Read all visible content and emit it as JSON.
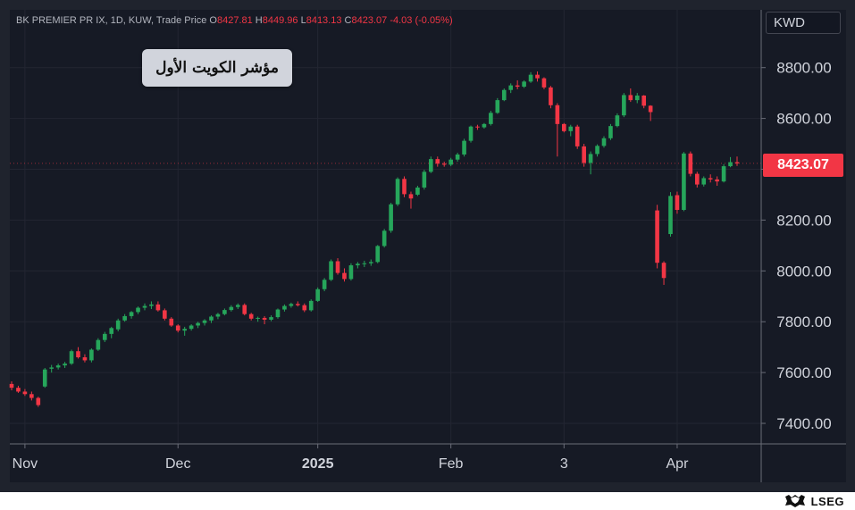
{
  "legend": {
    "symbol": "BK PREMIER PR IX, 1D, KUW, Trade Price",
    "open_label": "O",
    "open": "8427.81",
    "high_label": "H",
    "high": "8449.96",
    "low_label": "L",
    "low": "8413.13",
    "close_label": "C",
    "close": "8423.07",
    "change": "-4.03 (-0.05%)"
  },
  "title_box": "مؤشر الكويت الأول",
  "currency": "KWD",
  "last_price": "8423.07",
  "brand": "LSEG",
  "colors": {
    "up": "#26a65b",
    "down": "#f23645",
    "background": "#161a25",
    "grid": "#232632"
  },
  "chart_data": {
    "type": "candlestick",
    "ylim": [
      7300,
      8920
    ],
    "y_ticks": [
      "7400.00",
      "7600.00",
      "7800.00",
      "8000.00",
      "8200.00",
      "8400.00",
      "8600.00",
      "8800.00"
    ],
    "x_ticks": [
      "Nov",
      "Dec",
      "2025",
      "Feb",
      "3",
      "Apr"
    ],
    "grid": true,
    "candles": [
      [
        7555,
        7565,
        7530,
        7540
      ],
      [
        7540,
        7548,
        7520,
        7525
      ],
      [
        7525,
        7535,
        7508,
        7515
      ],
      [
        7515,
        7525,
        7490,
        7500
      ],
      [
        7500,
        7505,
        7465,
        7472
      ],
      [
        7545,
        7618,
        7540,
        7612
      ],
      [
        7615,
        7630,
        7600,
        7620
      ],
      [
        7620,
        7635,
        7612,
        7628
      ],
      [
        7628,
        7642,
        7618,
        7635
      ],
      [
        7635,
        7690,
        7630,
        7684
      ],
      [
        7684,
        7700,
        7655,
        7660
      ],
      [
        7660,
        7672,
        7640,
        7648
      ],
      [
        7648,
        7695,
        7640,
        7690
      ],
      [
        7690,
        7735,
        7685,
        7728
      ],
      [
        7728,
        7760,
        7720,
        7752
      ],
      [
        7752,
        7780,
        7735,
        7775
      ],
      [
        7770,
        7812,
        7762,
        7805
      ],
      [
        7805,
        7830,
        7800,
        7822
      ],
      [
        7822,
        7842,
        7812,
        7838
      ],
      [
        7838,
        7860,
        7830,
        7855
      ],
      [
        7855,
        7872,
        7845,
        7862
      ],
      [
        7862,
        7880,
        7850,
        7868
      ],
      [
        7868,
        7880,
        7840,
        7845
      ],
      [
        7845,
        7852,
        7805,
        7812
      ],
      [
        7812,
        7818,
        7780,
        7785
      ],
      [
        7785,
        7790,
        7758,
        7765
      ],
      [
        7765,
        7780,
        7745,
        7772
      ],
      [
        7772,
        7790,
        7765,
        7785
      ],
      [
        7785,
        7800,
        7775,
        7795
      ],
      [
        7795,
        7810,
        7785,
        7805
      ],
      [
        7805,
        7825,
        7795,
        7820
      ],
      [
        7820,
        7835,
        7810,
        7830
      ],
      [
        7830,
        7852,
        7825,
        7846
      ],
      [
        7846,
        7865,
        7840,
        7858
      ],
      [
        7858,
        7872,
        7850,
        7866
      ],
      [
        7866,
        7872,
        7825,
        7830
      ],
      [
        7830,
        7835,
        7805,
        7812
      ],
      [
        7812,
        7820,
        7800,
        7815
      ],
      [
        7815,
        7822,
        7790,
        7808
      ],
      [
        7808,
        7825,
        7802,
        7818
      ],
      [
        7818,
        7852,
        7812,
        7848
      ],
      [
        7848,
        7868,
        7840,
        7862
      ],
      [
        7862,
        7875,
        7855,
        7870
      ],
      [
        7870,
        7880,
        7860,
        7865
      ],
      [
        7865,
        7872,
        7838,
        7845
      ],
      [
        7845,
        7888,
        7840,
        7882
      ],
      [
        7882,
        7935,
        7878,
        7928
      ],
      [
        7928,
        7972,
        7920,
        7965
      ],
      [
        7965,
        8045,
        7960,
        8038
      ],
      [
        8038,
        8050,
        7985,
        7992
      ],
      [
        7992,
        8010,
        7958,
        7968
      ],
      [
        7968,
        8030,
        7962,
        8022
      ],
      [
        8022,
        8035,
        8010,
        8028
      ],
      [
        8028,
        8040,
        8015,
        8030
      ],
      [
        8030,
        8045,
        8020,
        8035
      ],
      [
        8035,
        8102,
        8030,
        8098
      ],
      [
        8098,
        8165,
        8092,
        8158
      ],
      [
        8158,
        8268,
        8150,
        8262
      ],
      [
        8262,
        8368,
        8255,
        8362
      ],
      [
        8362,
        8372,
        8290,
        8302
      ],
      [
        8302,
        8312,
        8245,
        8285
      ],
      [
        8300,
        8335,
        8295,
        8328
      ],
      [
        8328,
        8398,
        8320,
        8390
      ],
      [
        8390,
        8450,
        8385,
        8440
      ],
      [
        8440,
        8450,
        8410,
        8422
      ],
      [
        8422,
        8430,
        8410,
        8418
      ],
      [
        8418,
        8445,
        8412,
        8438
      ],
      [
        8438,
        8465,
        8430,
        8458
      ],
      [
        8458,
        8520,
        8450,
        8512
      ],
      [
        8512,
        8572,
        8505,
        8568
      ],
      [
        8568,
        8575,
        8555,
        8565
      ],
      [
        8565,
        8582,
        8560,
        8578
      ],
      [
        8578,
        8630,
        8572,
        8622
      ],
      [
        8622,
        8680,
        8618,
        8672
      ],
      [
        8672,
        8718,
        8668,
        8712
      ],
      [
        8712,
        8738,
        8700,
        8730
      ],
      [
        8730,
        8750,
        8715,
        8725
      ],
      [
        8725,
        8750,
        8720,
        8745
      ],
      [
        8745,
        8782,
        8740,
        8772
      ],
      [
        8772,
        8785,
        8745,
        8758
      ],
      [
        8758,
        8762,
        8715,
        8722
      ],
      [
        8722,
        8728,
        8640,
        8652
      ],
      [
        8652,
        8660,
        8450,
        8578
      ],
      [
        8578,
        8582,
        8545,
        8550
      ],
      [
        8550,
        8575,
        8530,
        8568
      ],
      [
        8568,
        8575,
        8480,
        8490
      ],
      [
        8490,
        8500,
        8410,
        8425
      ],
      [
        8425,
        8470,
        8380,
        8460
      ],
      [
        8460,
        8498,
        8450,
        8492
      ],
      [
        8492,
        8530,
        8485,
        8522
      ],
      [
        8522,
        8578,
        8515,
        8570
      ],
      [
        8570,
        8620,
        8565,
        8612
      ],
      [
        8612,
        8700,
        8605,
        8692
      ],
      [
        8692,
        8718,
        8665,
        8672
      ],
      [
        8672,
        8700,
        8660,
        8690
      ],
      [
        8690,
        8692,
        8640,
        8650
      ],
      [
        8650,
        8652,
        8590,
        8625
      ],
      [
        8238,
        8260,
        8010,
        8032
      ],
      [
        8032,
        8038,
        7945,
        7972
      ],
      [
        8145,
        8310,
        8135,
        8295
      ],
      [
        8298,
        8312,
        8225,
        8240
      ],
      [
        8240,
        8468,
        8235,
        8462
      ],
      [
        8462,
        8470,
        8372,
        8382
      ],
      [
        8382,
        8390,
        8328,
        8340
      ],
      [
        8340,
        8372,
        8332,
        8365
      ],
      [
        8365,
        8380,
        8348,
        8360
      ],
      [
        8360,
        8372,
        8335,
        8352
      ],
      [
        8352,
        8420,
        8348,
        8412
      ],
      [
        8412,
        8448,
        8408,
        8428
      ],
      [
        8427.81,
        8449.96,
        8413.13,
        8423.07
      ]
    ],
    "x_tick_candle_index": [
      2,
      25,
      46,
      66,
      83,
      100
    ]
  }
}
